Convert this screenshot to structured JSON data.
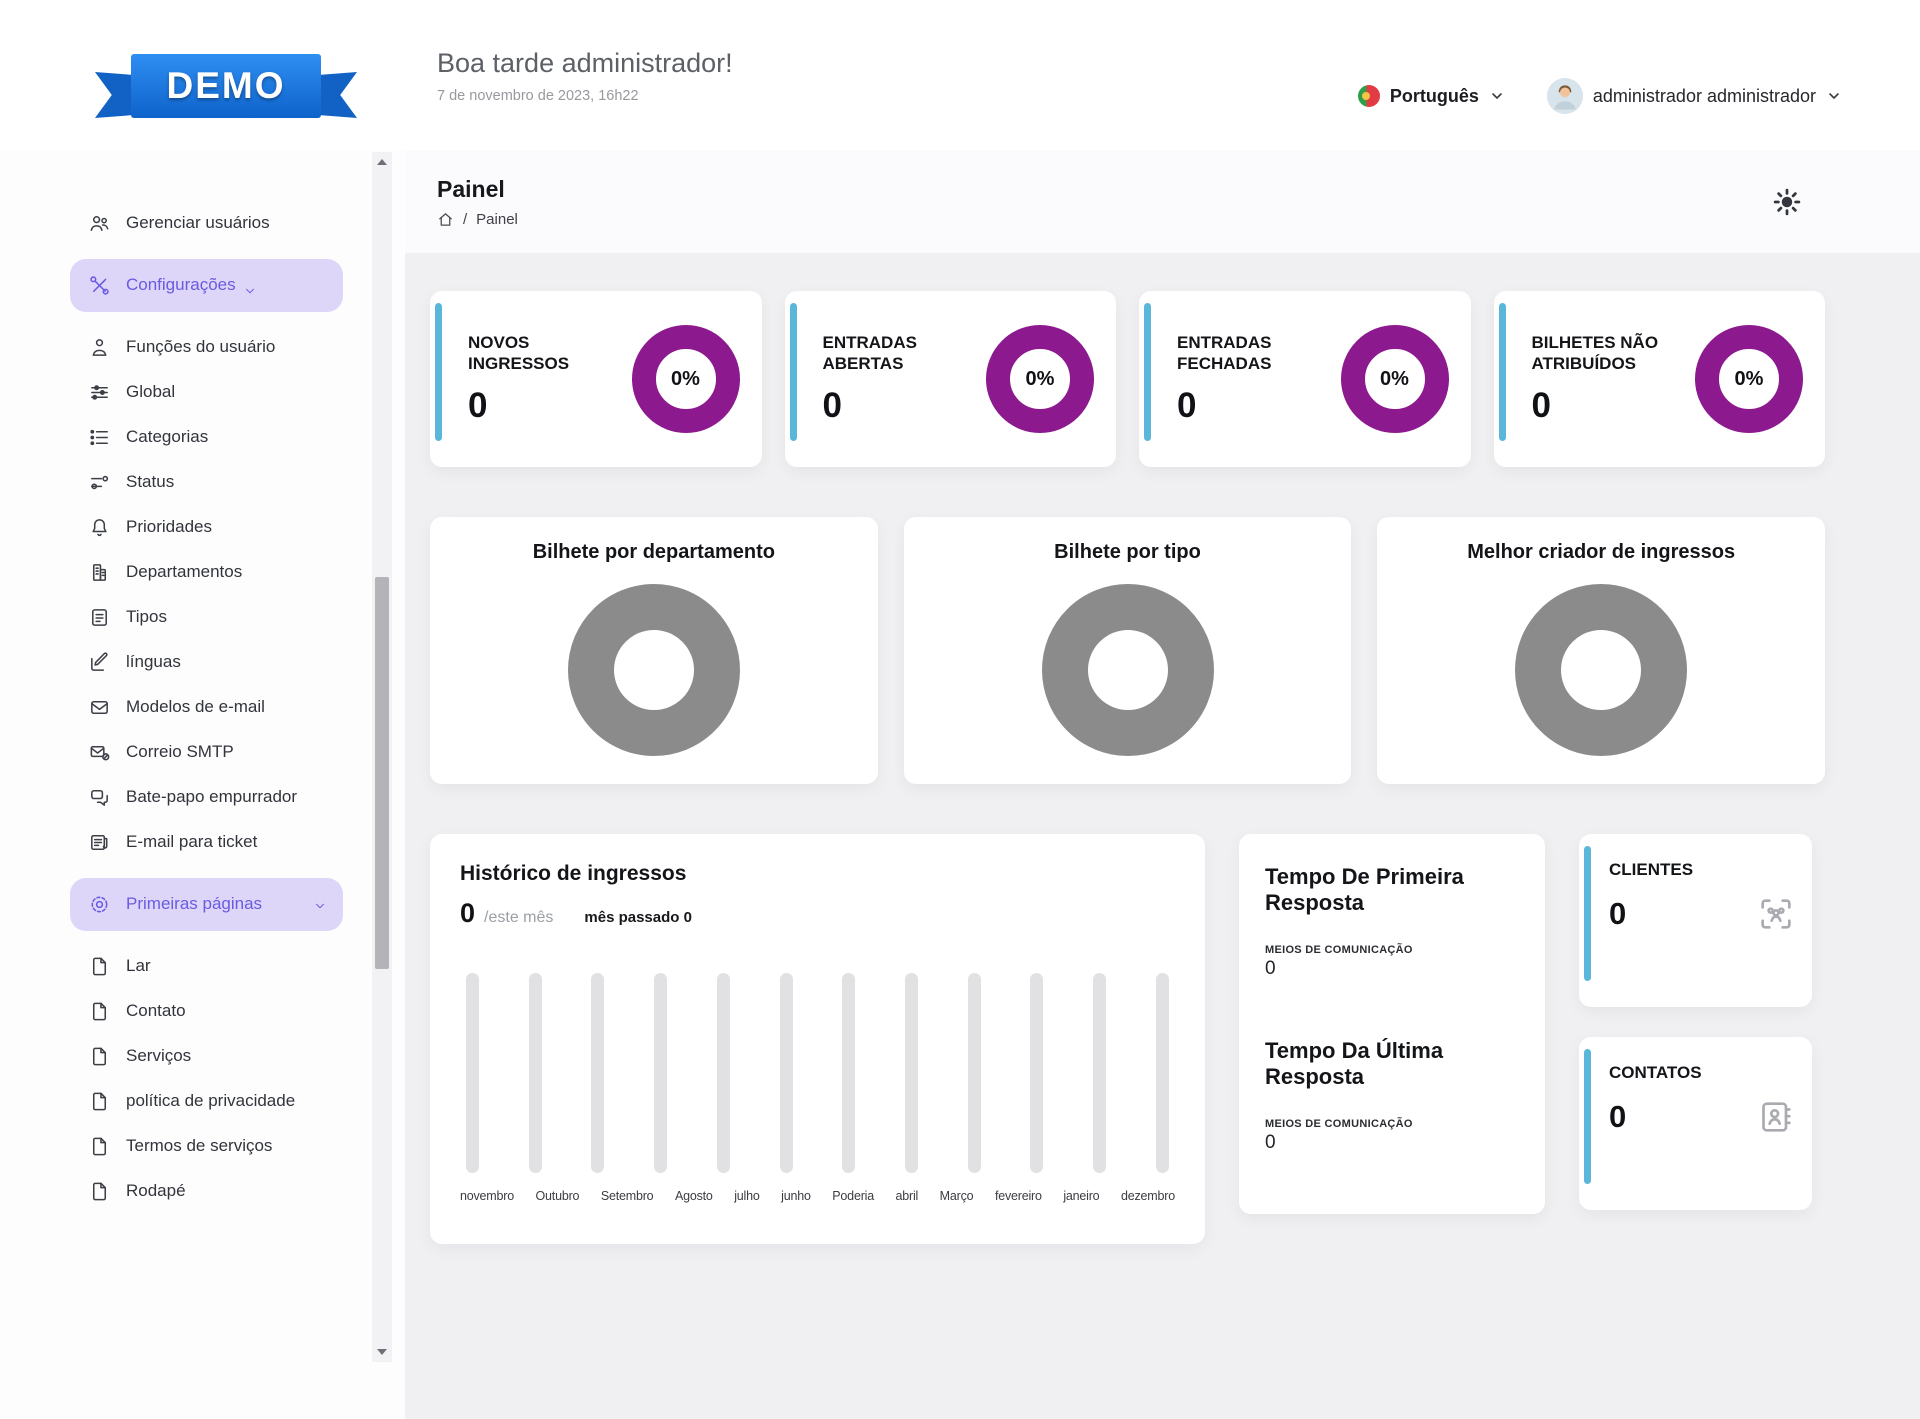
{
  "header": {
    "logo_text": "DEMO",
    "greeting": "Boa tarde administrador!",
    "date": "7 de novembro de 2023, 16h22",
    "language": {
      "label": "Português",
      "flag_icon": "portugal-flag"
    },
    "user": {
      "name": "administrador administrador",
      "avatar_icon": "person-avatar"
    }
  },
  "page": {
    "title": "Painel",
    "breadcrumb": {
      "home_icon": "home",
      "separator": "/",
      "current": "Painel"
    },
    "theme_icon": "sun"
  },
  "sidebar": {
    "items": [
      {
        "label": "Gerenciar usuários",
        "icon": "users"
      },
      {
        "label": "Configurações",
        "icon": "tools",
        "active": true,
        "chevron": "inline"
      },
      {
        "label": "Funções do usuário",
        "icon": "user-role"
      },
      {
        "label": "Global",
        "icon": "sliders"
      },
      {
        "label": "Categorias",
        "icon": "list"
      },
      {
        "label": "Status",
        "icon": "toggles"
      },
      {
        "label": "Prioridades",
        "icon": "bell"
      },
      {
        "label": "Departamentos",
        "icon": "building"
      },
      {
        "label": "Tipos",
        "icon": "document"
      },
      {
        "label": "línguas",
        "icon": "edit"
      },
      {
        "label": "Modelos de e-mail",
        "icon": "mail"
      },
      {
        "label": "Correio SMTP",
        "icon": "mail-at"
      },
      {
        "label": "Bate-papo empurrador",
        "icon": "chat"
      },
      {
        "label": "E-mail para ticket",
        "icon": "mail-doc"
      },
      {
        "label": "Primeiras páginas",
        "icon": "gear",
        "active": true,
        "chevron": "right"
      },
      {
        "label": "Lar",
        "icon": "page"
      },
      {
        "label": "Contato",
        "icon": "page"
      },
      {
        "label": "Serviços",
        "icon": "page"
      },
      {
        "label": "política de privacidade",
        "icon": "page"
      },
      {
        "label": "Termos de serviços",
        "icon": "page"
      },
      {
        "label": "Rodapé",
        "icon": "page"
      }
    ]
  },
  "stats": [
    {
      "label": "NOVOS INGRESSOS",
      "value": "0",
      "percent": "0%"
    },
    {
      "label": "ENTRADAS ABERTAS",
      "value": "0",
      "percent": "0%"
    },
    {
      "label": "ENTRADAS FECHADAS",
      "value": "0",
      "percent": "0%"
    },
    {
      "label": "BILHETES NÃO ATRIBUÍDOS",
      "value": "0",
      "percent": "0%"
    }
  ],
  "donut_charts": [
    {
      "title": "Bilhete por departamento"
    },
    {
      "title": "Bilhete por tipo"
    },
    {
      "title": "Melhor criador de ingressos"
    }
  ],
  "history": {
    "title": "Histórico de ingressos",
    "this_month_value": "0",
    "this_month_label": "/este mês",
    "last_month_label": "mês passado 0",
    "months": [
      "novembro",
      "Outubro",
      "Setembro",
      "Agosto",
      "julho",
      "junho",
      "Poderia",
      "abril",
      "Março",
      "fevereiro",
      "janeiro",
      "dezembro"
    ]
  },
  "response_times": {
    "first": {
      "title": "Tempo De Primeira Resposta",
      "sub_label": "MEIOS DE COMUNICAÇÃO",
      "value": "0"
    },
    "last": {
      "title": "Tempo Da Última Resposta",
      "sub_label": "MEIOS DE COMUNICAÇÃO",
      "value": "0"
    }
  },
  "counters": [
    {
      "label": "CLIENTES",
      "value": "0",
      "icon": "customers-scan"
    },
    {
      "label": "CONTATOS",
      "value": "0",
      "icon": "contact-card"
    }
  ],
  "colors": {
    "accent_cyan": "#5bb7da",
    "donut_purple": "#8c1a8e",
    "donut_gray": "#8b8b8b",
    "active_pill_bg": "#ddd6f8",
    "active_pill_text": "#6a5be0",
    "logo_blue": "#1b74e0",
    "content_bg": "#f0f0f2"
  },
  "chart_data": [
    {
      "type": "pie",
      "title": "NOVOS INGRESSOS gauge",
      "categories": [
        "percent"
      ],
      "values": [
        0
      ],
      "annotations": [
        "0%"
      ]
    },
    {
      "type": "pie",
      "title": "ENTRADAS ABERTAS gauge",
      "categories": [
        "percent"
      ],
      "values": [
        0
      ],
      "annotations": [
        "0%"
      ]
    },
    {
      "type": "pie",
      "title": "ENTRADAS FECHADAS gauge",
      "categories": [
        "percent"
      ],
      "values": [
        0
      ],
      "annotations": [
        "0%"
      ]
    },
    {
      "type": "pie",
      "title": "BILHETES NÃO ATRIBUÍDOS gauge",
      "categories": [
        "percent"
      ],
      "values": [
        0
      ],
      "annotations": [
        "0%"
      ]
    },
    {
      "type": "pie",
      "title": "Bilhete por departamento",
      "categories": [],
      "values": [],
      "note": "empty gray placeholder donut"
    },
    {
      "type": "pie",
      "title": "Bilhete por tipo",
      "categories": [],
      "values": [],
      "note": "empty gray placeholder donut"
    },
    {
      "type": "pie",
      "title": "Melhor criador de ingressos",
      "categories": [],
      "values": [],
      "note": "empty gray placeholder donut"
    },
    {
      "type": "bar",
      "title": "Histórico de ingressos",
      "categories": [
        "novembro",
        "Outubro",
        "Setembro",
        "Agosto",
        "julho",
        "junho",
        "Poderia",
        "abril",
        "Março",
        "fevereiro",
        "janeiro",
        "dezembro"
      ],
      "values": [
        0,
        0,
        0,
        0,
        0,
        0,
        0,
        0,
        0,
        0,
        0,
        0
      ],
      "xlabel": "",
      "ylabel": "",
      "ylim": [
        0,
        1
      ],
      "grid": false,
      "legend": false
    }
  ]
}
